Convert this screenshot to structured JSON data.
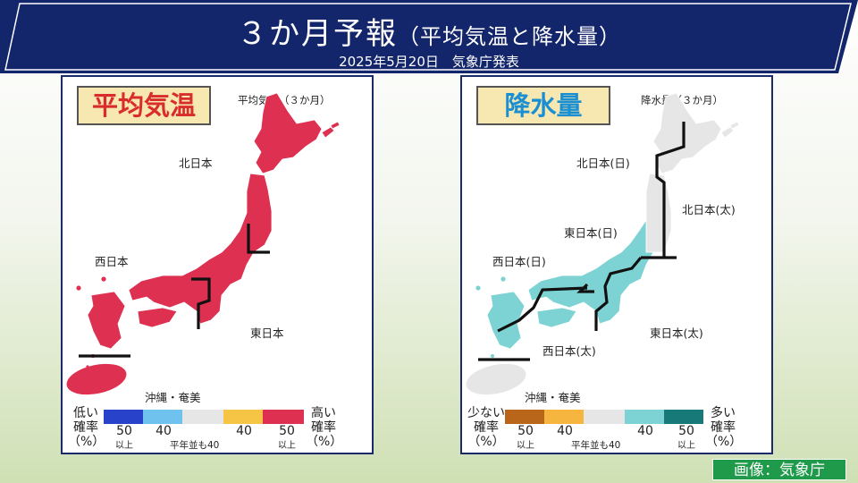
{
  "header": {
    "title": "３か月予報",
    "subtitle": "（平均気温と降水量）",
    "date": "2025年5月20日　気象庁発表",
    "banner_color": "#13256b"
  },
  "temperature": {
    "heading": "平均気温",
    "caption": "平均気温（３か月）",
    "regions": {
      "north": "北日本",
      "east": "東日本",
      "west": "西日本",
      "okinawa": "沖縄・奄美"
    },
    "forecast_category": "高い 50",
    "map_color": "#de3050",
    "legend": {
      "left_label": "低い\n確率\n（%）",
      "right_label": "高い\n確率\n（%）",
      "pct": [
        "50",
        "40",
        "40",
        "50"
      ],
      "ijo": "以上",
      "normal_note": "平年並も40",
      "colors": [
        "#2843c9",
        "#6fc2ee",
        "#e6e6e6",
        "#f7c545",
        "#de3050"
      ]
    }
  },
  "precipitation": {
    "heading": "降水量",
    "caption": "降水量（３か月）",
    "regions": {
      "north_sea": "北日本(日)",
      "north_pacific": "北日本(太)",
      "east_sea": "東日本(日)",
      "east_pacific": "東日本(太)",
      "west_sea": "西日本(日)",
      "west_pacific": "西日本(太)",
      "okinawa": "沖縄・奄美"
    },
    "colors": {
      "above": "#7dd3d3",
      "normal": "#e6e6e6"
    },
    "legend": {
      "left_label": "少ない\n確率\n（%）",
      "right_label": "多い\n確率\n（%）",
      "pct": [
        "50",
        "40",
        "40",
        "50"
      ],
      "ijo": "以上",
      "normal_note": "平年並も40",
      "colors": [
        "#b9651a",
        "#f6b53f",
        "#e6e6e6",
        "#7dd3d3",
        "#177a78"
      ]
    }
  },
  "credit": "画像：気象庁"
}
